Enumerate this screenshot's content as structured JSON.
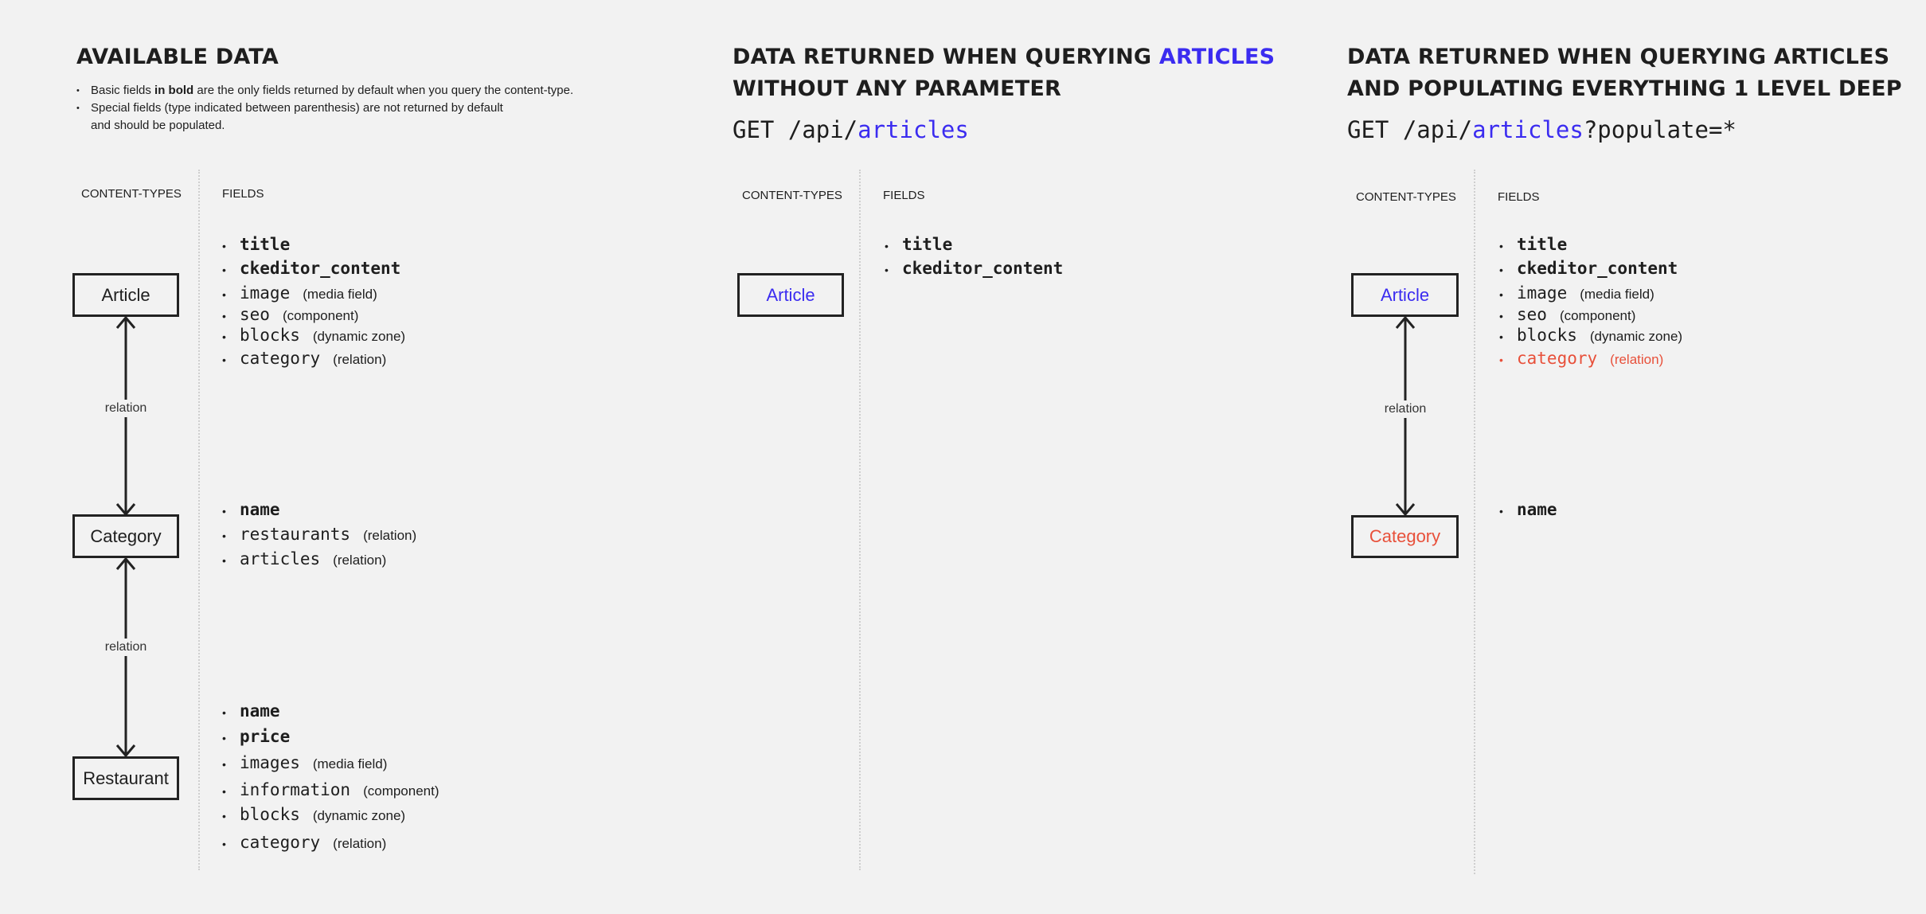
{
  "colors": {
    "accent_blue": "#3b2cf0",
    "highlight_red": "#e8503a",
    "background": "#f2f2f2",
    "text": "#1e1e1e"
  },
  "col1": {
    "title": "AVAILABLE DATA",
    "notes": {
      "n1_pre": "Basic fields ",
      "n1_bold": "in bold",
      "n1_post": " are the only fields returned by default when you query the content-type.",
      "n2_line1": "Special fields (type indicated between parenthesis) are not returned by default",
      "n2_line2": "and should be populated."
    },
    "header_types": "CONTENT-TYPES",
    "header_fields": "FIELDS",
    "relation_label": "relation",
    "types": [
      "Article",
      "Category",
      "Restaurant"
    ],
    "fields": {
      "article": [
        {
          "name": "title",
          "bold": true
        },
        {
          "name": "ckeditor_content",
          "bold": true
        },
        {
          "name": "image",
          "type": "(media field)"
        },
        {
          "name": "seo",
          "type": "(component)"
        },
        {
          "name": "blocks",
          "type": "(dynamic zone)"
        },
        {
          "name": "category",
          "type": "(relation)"
        }
      ],
      "category": [
        {
          "name": "name",
          "bold": true
        },
        {
          "name": "restaurants",
          "type": "(relation)"
        },
        {
          "name": "articles",
          "type": "(relation)"
        }
      ],
      "restaurant": [
        {
          "name": "name",
          "bold": true
        },
        {
          "name": "price",
          "bold": true
        },
        {
          "name": "images",
          "type": "(media field)"
        },
        {
          "name": "information",
          "type": "(component)"
        },
        {
          "name": "blocks",
          "type": "(dynamic zone)"
        },
        {
          "name": "category",
          "type": "(relation)"
        }
      ]
    }
  },
  "col2": {
    "title_pre": "DATA RETURNED WHEN QUERYING ",
    "title_highlight": "ARTICLES",
    "title_line2": "WITHOUT ANY PARAMETER",
    "get_pre": "GET /api/",
    "get_resource": "articles",
    "header_types": "CONTENT-TYPES",
    "header_fields": "FIELDS",
    "types": [
      "Article"
    ],
    "fields": {
      "article": [
        {
          "name": "title",
          "bold": true
        },
        {
          "name": "ckeditor_content",
          "bold": true
        }
      ]
    }
  },
  "col3": {
    "title_line1": "DATA RETURNED WHEN QUERYING ARTICLES",
    "title_line2": "AND POPULATING EVERYTHING 1 LEVEL DEEP",
    "get_pre": "GET /api/",
    "get_resource": "articles",
    "get_query": "?populate=*",
    "header_types": "CONTENT-TYPES",
    "header_fields": "FIELDS",
    "relation_label": "relation",
    "types": [
      "Article",
      "Category"
    ],
    "fields": {
      "article": [
        {
          "name": "title",
          "bold": true
        },
        {
          "name": "ckeditor_content",
          "bold": true
        },
        {
          "name": "image",
          "type": "(media field)"
        },
        {
          "name": "seo",
          "type": "(component)"
        },
        {
          "name": "blocks",
          "type": "(dynamic zone)"
        },
        {
          "name": "category",
          "type": "(relation)",
          "highlight": true
        }
      ],
      "category": [
        {
          "name": "name",
          "bold": true
        }
      ]
    }
  }
}
